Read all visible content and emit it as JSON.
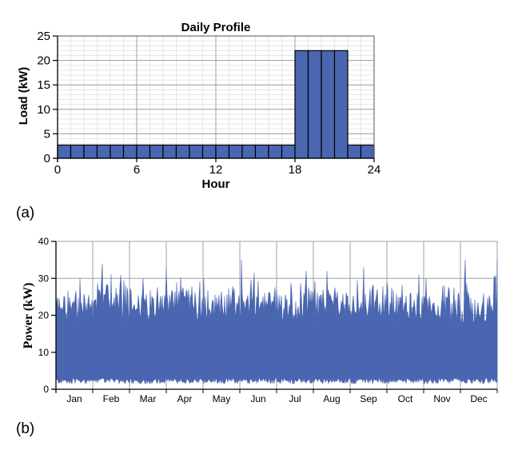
{
  "chart_data": [
    {
      "type": "bar",
      "title": "Daily Profile",
      "xlabel": "Hour",
      "ylabel": "Load (kW)",
      "xlim": [
        0,
        24
      ],
      "ylim": [
        0,
        25
      ],
      "xticks": [
        0,
        6,
        12,
        18,
        24
      ],
      "yticks": [
        0,
        5,
        10,
        15,
        20,
        25
      ],
      "grid": true,
      "bar_color": "#4a66b0",
      "hours": [
        0,
        1,
        2,
        3,
        4,
        5,
        6,
        7,
        8,
        9,
        10,
        11,
        12,
        13,
        14,
        15,
        16,
        17,
        18,
        19,
        20,
        21,
        22,
        23
      ],
      "values": [
        2.7,
        2.7,
        2.7,
        2.7,
        2.7,
        2.7,
        2.7,
        2.7,
        2.7,
        2.7,
        2.7,
        2.7,
        2.7,
        2.7,
        2.7,
        2.7,
        2.7,
        2.7,
        22,
        22,
        22,
        22,
        2.7,
        2.7
      ]
    },
    {
      "type": "area",
      "title": "",
      "xlabel": "",
      "ylabel": "Power (kW)",
      "ylim": [
        0,
        40
      ],
      "yticks": [
        0,
        10,
        20,
        30,
        40
      ],
      "grid": true,
      "fill_color": "#4a66b0",
      "months": [
        "Jan",
        "Feb",
        "Mar",
        "Apr",
        "May",
        "Jun",
        "Jul",
        "Aug",
        "Sep",
        "Oct",
        "Nov",
        "Dec"
      ],
      "monthly_min": [
        1.5,
        1.5,
        1.5,
        1.5,
        1.5,
        1.5,
        1.5,
        1.5,
        1.5,
        1.5,
        1.5,
        1.5
      ],
      "monthly_typical_max": [
        26,
        27,
        26,
        27,
        26,
        27,
        26,
        27,
        26,
        26,
        26,
        25
      ],
      "monthly_peak": [
        30,
        34,
        30,
        33,
        30,
        35,
        32,
        32,
        33,
        31,
        30,
        35
      ]
    }
  ],
  "panel_labels": [
    "(a)",
    "(b)"
  ]
}
